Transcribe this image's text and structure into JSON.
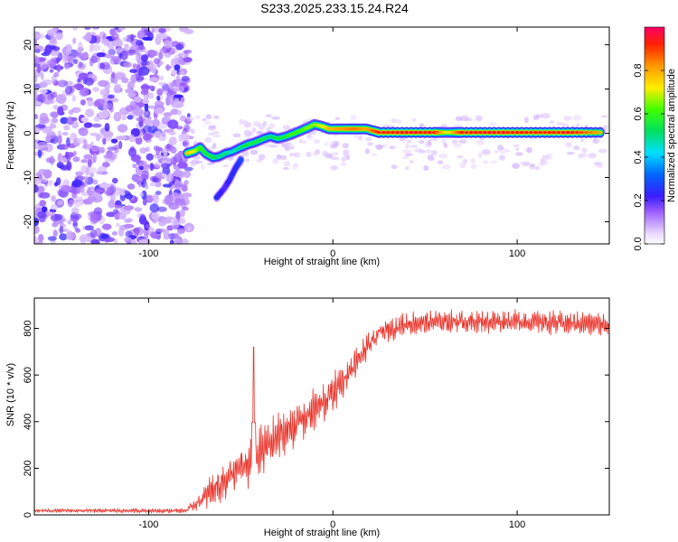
{
  "title": "S233.2025.233.15.24.R24",
  "chart_data": [
    {
      "type": "heatmap",
      "xlabel": "Height of straight line (km)",
      "ylabel": "Frequency (Hz)",
      "xlim": [
        -162,
        150
      ],
      "ylim": [
        -25,
        24
      ],
      "xticks": [
        -100,
        0,
        100
      ],
      "yticks": [
        -20,
        -10,
        0,
        10,
        20
      ],
      "noise_region_x": [
        -162,
        -78
      ],
      "signal_trace": [
        {
          "x": -79,
          "f": -4.5,
          "a": 0.78
        },
        {
          "x": -75,
          "f": -4.0,
          "a": 0.7
        },
        {
          "x": -72,
          "f": -3.2,
          "a": 0.6
        },
        {
          "x": -69,
          "f": -4.6,
          "a": 0.55
        },
        {
          "x": -65,
          "f": -5.5,
          "a": 0.55
        },
        {
          "x": -62,
          "f": -5.3,
          "a": 0.5
        },
        {
          "x": -58,
          "f": -4.5,
          "a": 0.5
        },
        {
          "x": -55,
          "f": -4.2,
          "a": 0.45
        },
        {
          "x": -50,
          "f": -3.2,
          "a": 0.5
        },
        {
          "x": -46,
          "f": -2.5,
          "a": 0.55
        },
        {
          "x": -42,
          "f": -2.0,
          "a": 0.55
        },
        {
          "x": -38,
          "f": -1.3,
          "a": 0.55
        },
        {
          "x": -34,
          "f": -0.7,
          "a": 0.5
        },
        {
          "x": -30,
          "f": -1.2,
          "a": 0.55
        },
        {
          "x": -26,
          "f": -0.8,
          "a": 0.55
        },
        {
          "x": -22,
          "f": -0.2,
          "a": 0.6
        },
        {
          "x": -18,
          "f": 0.5,
          "a": 0.6
        },
        {
          "x": -14,
          "f": 1.2,
          "a": 0.65
        },
        {
          "x": -10,
          "f": 2.0,
          "a": 0.65
        },
        {
          "x": -6,
          "f": 1.6,
          "a": 0.7
        },
        {
          "x": -2,
          "f": 1.0,
          "a": 0.78
        },
        {
          "x": 5,
          "f": 1.0,
          "a": 0.82
        },
        {
          "x": 12,
          "f": 1.0,
          "a": 0.85
        },
        {
          "x": 18,
          "f": 1.0,
          "a": 0.8
        },
        {
          "x": 25,
          "f": 0.2,
          "a": 0.92
        },
        {
          "x": 40,
          "f": 0.2,
          "a": 0.95
        },
        {
          "x": 55,
          "f": 0.2,
          "a": 0.93
        },
        {
          "x": 62,
          "f": 0.2,
          "a": 0.7
        },
        {
          "x": 70,
          "f": 0.2,
          "a": 0.92
        },
        {
          "x": 85,
          "f": 0.2,
          "a": 0.95
        },
        {
          "x": 100,
          "f": 0.2,
          "a": 0.93
        },
        {
          "x": 115,
          "f": 0.2,
          "a": 0.92
        },
        {
          "x": 130,
          "f": 0.2,
          "a": 0.94
        },
        {
          "x": 145,
          "f": 0.2,
          "a": 0.8
        }
      ],
      "branch_trace": [
        {
          "x": -50,
          "f": -6.0,
          "a": 0.35
        },
        {
          "x": -53,
          "f": -8.0,
          "a": 0.3
        },
        {
          "x": -56,
          "f": -10.5,
          "a": 0.3
        },
        {
          "x": -59,
          "f": -12.5,
          "a": 0.25
        },
        {
          "x": -63,
          "f": -14.5,
          "a": 0.3
        }
      ],
      "colorbar": {
        "label": "Normalized spectral amplitude",
        "ticks": [
          0.0,
          0.2,
          0.4,
          0.6,
          0.8
        ],
        "range": [
          0,
          1
        ]
      }
    },
    {
      "type": "line",
      "xlabel": "Height of straight line (km)",
      "ylabel": "SNR (10 * v/v)",
      "xlim": [
        -162,
        150
      ],
      "ylim": [
        0,
        930
      ],
      "xticks": [
        -100,
        0,
        100
      ],
      "yticks": [
        0,
        200,
        400,
        600,
        800
      ],
      "color": "#e8332a",
      "series": [
        {
          "name": "SNR",
          "envelope_x": [
            -162,
            -80,
            -72,
            -65,
            -55,
            -45,
            -35,
            -25,
            -15,
            -5,
            5,
            15,
            25,
            40,
            60,
            80,
            100,
            120,
            140,
            150
          ],
          "envelope_mid": [
            18,
            18,
            60,
            110,
            170,
            220,
            300,
            360,
            420,
            480,
            570,
            680,
            780,
            820,
            830,
            830,
            830,
            825,
            820,
            815
          ],
          "envelope_amp": [
            8,
            10,
            40,
            80,
            100,
            110,
            110,
            100,
            100,
            90,
            80,
            60,
            50,
            50,
            50,
            50,
            50,
            50,
            50,
            50
          ],
          "spike": {
            "x": -43,
            "y": 720
          }
        }
      ]
    }
  ]
}
